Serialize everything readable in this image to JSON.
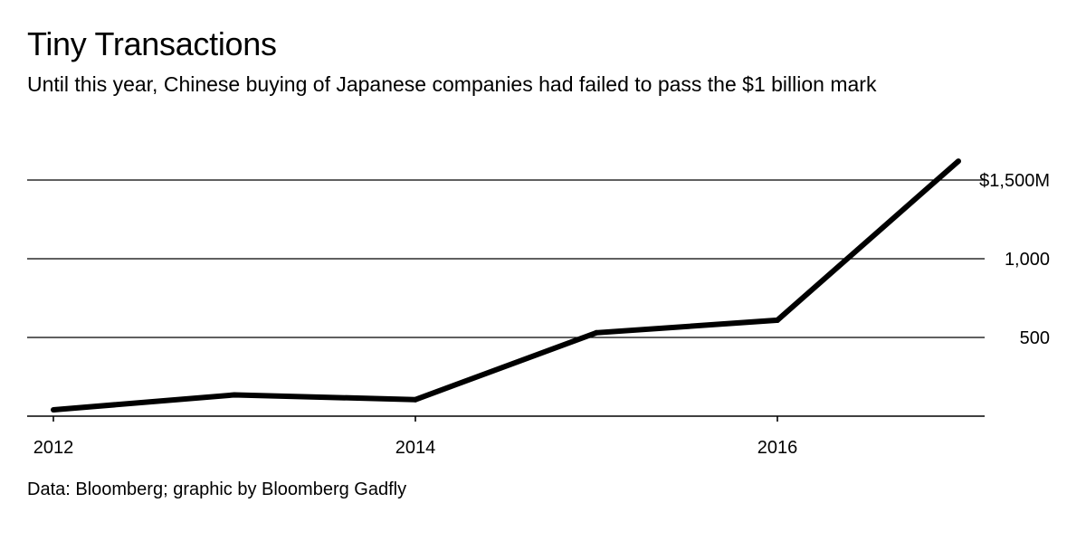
{
  "chart_data": {
    "type": "line",
    "title": "Tiny Transactions",
    "subtitle": "Until this year, Chinese buying of Japanese companies had failed to pass the $1 billion mark",
    "source": "Data: Bloomberg; graphic by Bloomberg Gadfly",
    "xlabel": "",
    "ylabel": "",
    "x": [
      2012,
      2013,
      2014,
      2015,
      2016,
      2017
    ],
    "series": [
      {
        "name": "Chinese buying of Japanese companies ($M)",
        "values": [
          40,
          135,
          105,
          530,
          610,
          1620
        ]
      }
    ],
    "xlim": [
      2011.85,
      2017.15
    ],
    "ylim": [
      0,
      1500
    ],
    "x_ticks": [
      {
        "value": 2012,
        "label": "2012"
      },
      {
        "value": 2014,
        "label": "2014"
      },
      {
        "value": 2016,
        "label": "2016"
      }
    ],
    "y_ticks": [
      {
        "value": 500,
        "label": "500"
      },
      {
        "value": 1000,
        "label": "1,000"
      },
      {
        "value": 1500,
        "label": "$1,500M"
      }
    ],
    "grid": true,
    "line_color": "#000000"
  }
}
